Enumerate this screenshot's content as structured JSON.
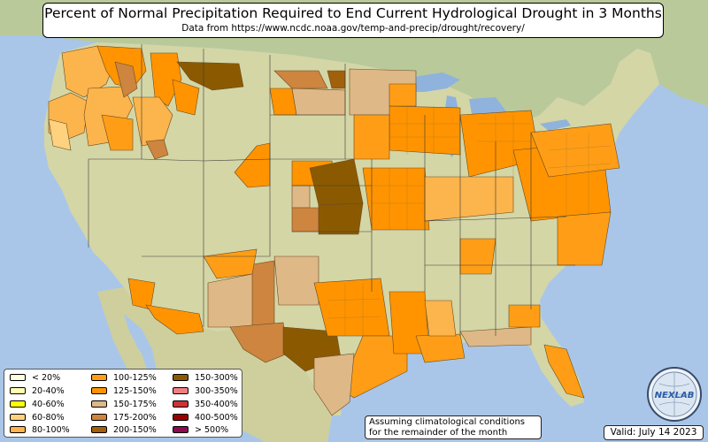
{
  "title": "Percent of Normal Precipitation Required to End Current Hydrological Drought in 3 Months",
  "subtitle": "Data from https://www.ncdc.noaa.gov/temp-and-precip/drought/recovery/",
  "legend": {
    "items": [
      {
        "label": "< 20%",
        "color": "#ffffe0"
      },
      {
        "label": "20-40%",
        "color": "#ffffb0"
      },
      {
        "label": "40-60%",
        "color": "#ffff00"
      },
      {
        "label": "60-80%",
        "color": "#ffd27f"
      },
      {
        "label": "80-100%",
        "color": "#fcb44c"
      },
      {
        "label": "100-125%",
        "color": "#ff9e16"
      },
      {
        "label": "125-150%",
        "color": "#ff9400"
      },
      {
        "label": "150-175%",
        "color": "#deb887"
      },
      {
        "label": "175-200%",
        "color": "#cd853f"
      },
      {
        "label": "200-150%",
        "color": "#a0600c"
      },
      {
        "label": "150-300%",
        "color": "#8b5a00"
      },
      {
        "label": "300-350%",
        "color": "#f08080"
      },
      {
        "label": "350-400%",
        "color": "#cd3333"
      },
      {
        "label": "400-500%",
        "color": "#9b0000"
      },
      {
        "label": "> 500%",
        "color": "#8b0a50"
      }
    ]
  },
  "note": {
    "line1": "Assuming climatological conditions",
    "line2": "for the remainder of the month"
  },
  "valid": "Valid: July 14 2023",
  "logo": {
    "text": "NEXLAB",
    "icon": "nexlab-globe-logo"
  },
  "colors": {
    "ocean": "#a9c6e8",
    "land": "#d4d6a6",
    "forest": "#9cb88a",
    "lake": "#8fb3dc"
  }
}
